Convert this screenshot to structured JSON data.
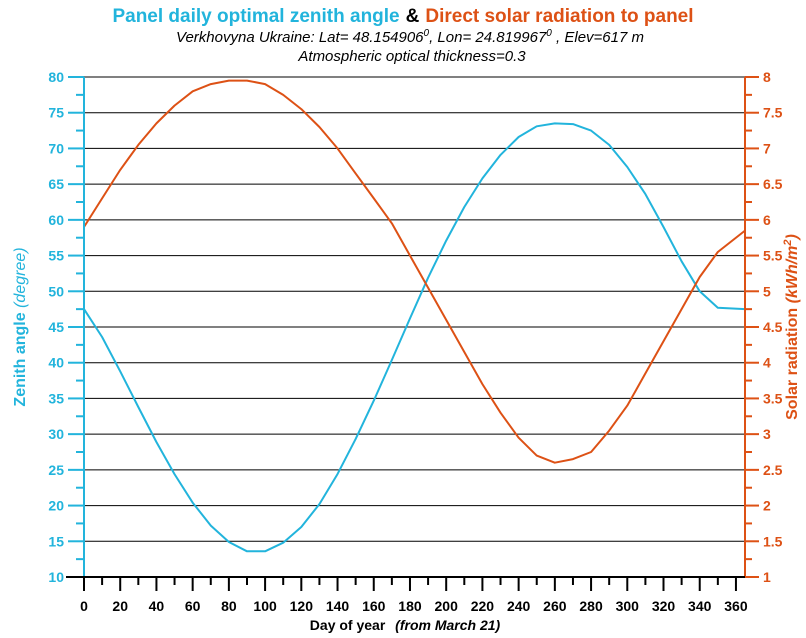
{
  "chart_data": {
    "type": "line",
    "title_part1": "Panel daily  optimal zenith angle",
    "title_amp": "&",
    "title_part2": "Direct solar radiation to panel",
    "subtitle1": {
      "pre": "Verkhovyna Ukraine: Lat= 48.154906",
      "sup1": "0",
      "mid": ", Lon= 24.819967",
      "sup2": "0",
      "post": " , Elev=617 m"
    },
    "subtitle2": "Atmospheric optical thickness=0.3",
    "xlabel": "Day of year",
    "xlabel_note": "(from March 21)",
    "ylabel_left": {
      "main": "Zenith angle",
      "unit": "(degree)"
    },
    "ylabel_right": {
      "main": "Solar radiation",
      "unit_pre": "(kWh/m",
      "unit_sup": "2",
      "unit_post": ")"
    },
    "xlim": [
      0,
      365
    ],
    "ylim_left": [
      10,
      80
    ],
    "ylim_right": [
      1,
      8
    ],
    "x_ticks": [
      "0",
      "20",
      "40",
      "60",
      "80",
      "100",
      "120",
      "140",
      "160",
      "180",
      "200",
      "220",
      "240",
      "260",
      "280",
      "300",
      "320",
      "340",
      "360"
    ],
    "y_left_ticks": [
      "10",
      "15",
      "20",
      "25",
      "30",
      "35",
      "40",
      "45",
      "50",
      "55",
      "60",
      "65",
      "70",
      "75",
      "80"
    ],
    "y_right_ticks": [
      "1",
      "1.5",
      "2",
      "2.5",
      "3",
      "3.5",
      "4",
      "4.5",
      "5",
      "5.5",
      "6",
      "6.5",
      "7",
      "7.5",
      "8"
    ],
    "grid": true,
    "colors": {
      "zenith": "#22b4dc",
      "radiation": "#dd5115",
      "axis": "#000000"
    },
    "series": [
      {
        "axis": "left",
        "x": [
          0,
          10,
          20,
          30,
          40,
          50,
          60,
          70,
          80,
          90,
          100,
          110,
          120,
          130,
          140,
          150,
          160,
          170,
          180,
          190,
          200,
          210,
          220,
          230,
          240,
          250,
          260,
          270,
          280,
          290,
          300,
          310,
          320,
          330,
          340,
          350,
          365
        ],
        "y": [
          47.5,
          43.6,
          38.8,
          33.8,
          28.9,
          24.4,
          20.4,
          17.2,
          14.9,
          13.6,
          13.6,
          14.8,
          17.0,
          20.2,
          24.4,
          29.3,
          34.7,
          40.4,
          46.2,
          51.9,
          57.1,
          61.8,
          65.8,
          69.1,
          71.6,
          73.1,
          73.5,
          73.4,
          72.5,
          70.5,
          67.4,
          63.6,
          59.0,
          54.2,
          50.0,
          47.7,
          47.5
        ]
      },
      {
        "axis": "right",
        "x": [
          0,
          10,
          20,
          30,
          40,
          50,
          60,
          70,
          80,
          90,
          100,
          110,
          120,
          130,
          140,
          150,
          160,
          170,
          180,
          190,
          200,
          210,
          220,
          230,
          240,
          250,
          260,
          270,
          280,
          290,
          300,
          310,
          320,
          330,
          340,
          350,
          365
        ],
        "y": [
          5.9,
          6.3,
          6.7,
          7.05,
          7.35,
          7.6,
          7.8,
          7.9,
          7.95,
          7.95,
          7.9,
          7.75,
          7.55,
          7.3,
          7.0,
          6.65,
          6.3,
          5.95,
          5.5,
          5.05,
          4.6,
          4.15,
          3.7,
          3.3,
          2.95,
          2.7,
          2.6,
          2.65,
          2.75,
          3.05,
          3.4,
          3.85,
          4.3,
          4.75,
          5.2,
          5.55,
          5.85
        ]
      }
    ]
  }
}
